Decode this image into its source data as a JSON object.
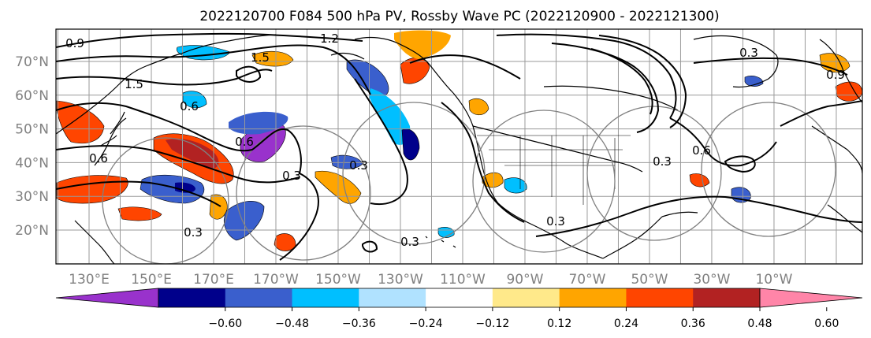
{
  "title": "2022120700 F084 500 hPa PV, Rossby Wave PC (2022120900 - 2022121300)",
  "map": {
    "lat_ticks": [
      "70°N",
      "60°N",
      "50°N",
      "40°N",
      "30°N",
      "20°N"
    ],
    "lon_ticks": [
      "130°E",
      "150°E",
      "170°E",
      "170°W",
      "150°W",
      "130°W",
      "110°W",
      "90°W",
      "70°W",
      "50°W",
      "30°W",
      "10°W"
    ],
    "contour_labels": [
      "1.2",
      "0.9",
      "1.5",
      "0.6",
      "0.3",
      "0.3",
      "0.3",
      "0.3",
      "0.6",
      "0.9",
      "0.3",
      "1.5",
      "0.6",
      "0.3",
      "0.3",
      "0.6"
    ]
  },
  "colorbar": {
    "ticks": [
      "−0.60",
      "−0.48",
      "−0.36",
      "−0.24",
      "−0.12",
      "0.12",
      "0.24",
      "0.36",
      "0.48",
      "0.60"
    ],
    "colors": [
      "#9932cc",
      "#00008b",
      "#3a5fcd",
      "#00bfff",
      "#b0e2ff",
      "#ffffff",
      "#ffe98a",
      "#ffa500",
      "#ff4500",
      "#b22222",
      "#ff85a8"
    ]
  },
  "colors": {
    "coast": "#000000",
    "grid": "#9a9a9a",
    "contour": "#000000",
    "circle": "#808080"
  }
}
